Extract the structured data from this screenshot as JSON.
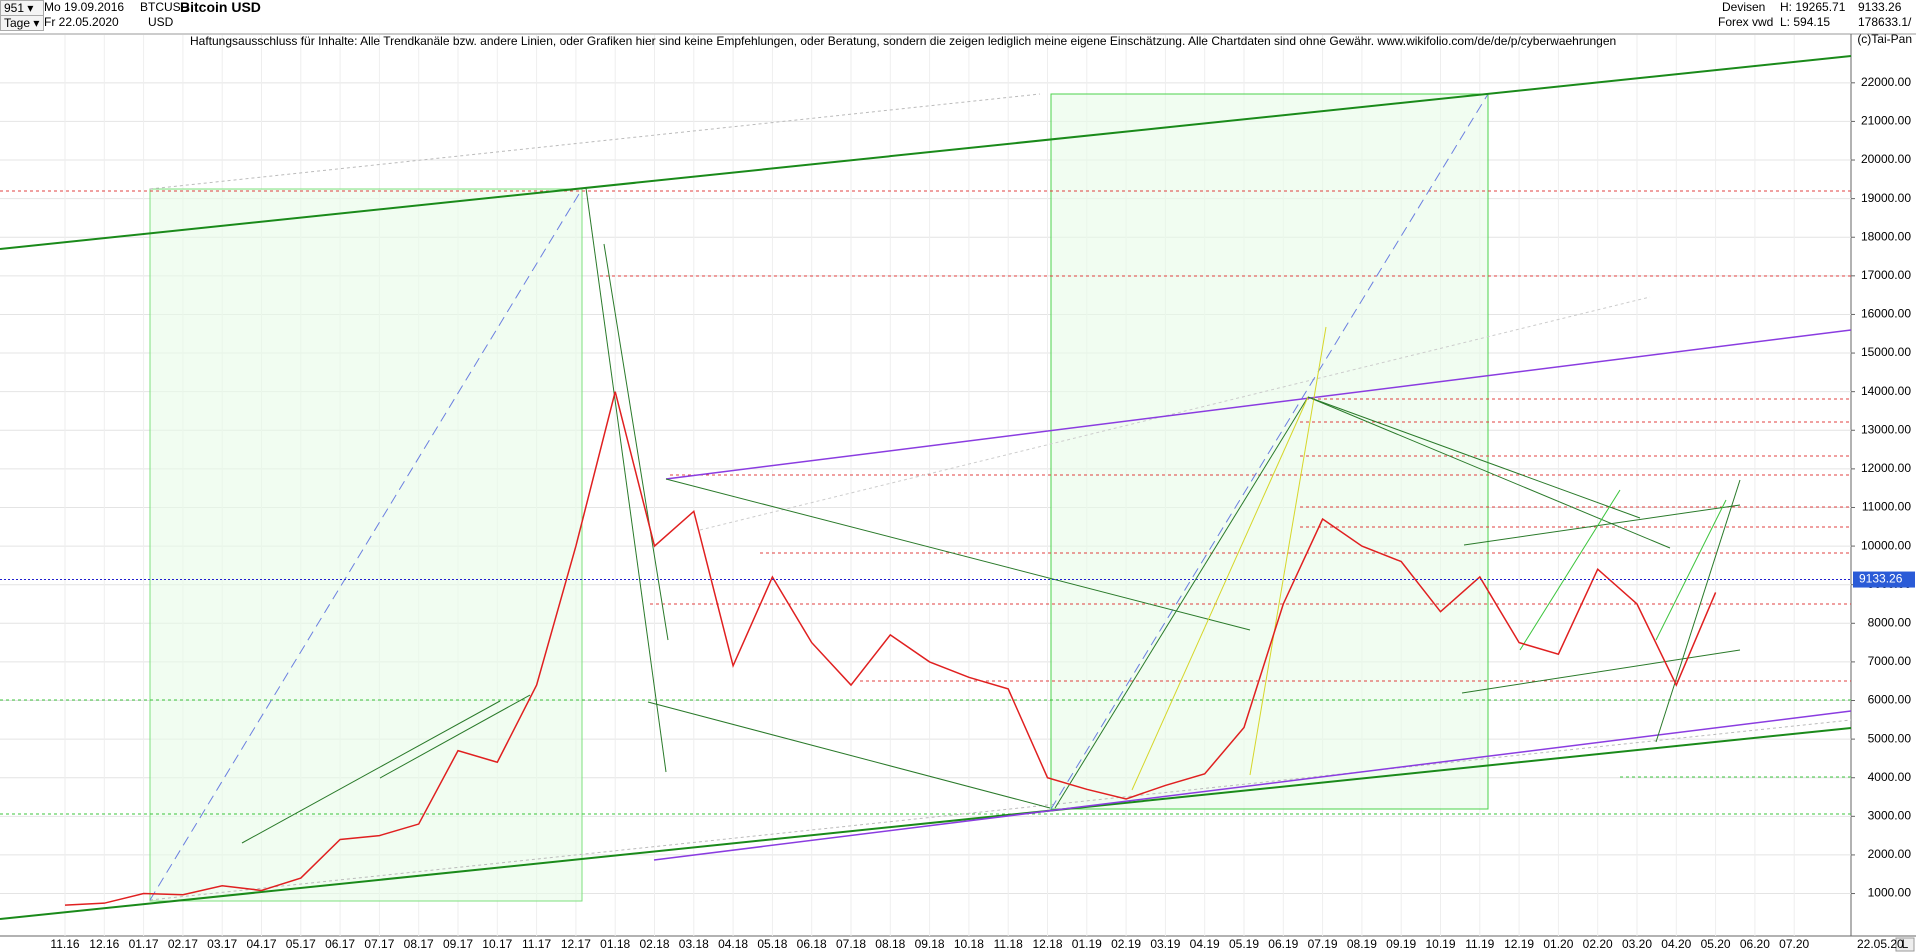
{
  "header": {
    "period": "951",
    "start_date": "Mo 19.09.2016",
    "symbol": "BTCUSD",
    "currency": "USD",
    "unit": "Tage",
    "end_date": "Fr 22.05.2020",
    "name": "Bitcoin USD",
    "market": "Devisen",
    "source": "Forex vwd",
    "high": "H: 19265.71",
    "low": "L: 594.15",
    "last": "9133.26",
    "volume": "178633.1/",
    "axis_mode": "L"
  },
  "disclaimer": "Haftungsausschluss für Inhalte: Alle Trendkanäle bzw. andere Linien, oder Grafiken hier sind keine Empfehlungen, oder Beratung, sondern die zeigen lediglich meine eigene Einschätzung. Alle Chartdaten sind ohne Gewähr.  www.wikifolio.com/de/de/p/cyberwaehrungen",
  "copyright": "(c)Tai-Pan",
  "chart_data": {
    "type": "line",
    "categories": [
      "11.16",
      "12.16",
      "01.17",
      "02.17",
      "03.17",
      "04.17",
      "05.17",
      "06.17",
      "07.17",
      "08.17",
      "09.17",
      "10.17",
      "11.17",
      "12.17",
      "01.18",
      "02.18",
      "03.18",
      "04.18",
      "05.18",
      "06.18",
      "07.18",
      "08.18",
      "09.18",
      "10.18",
      "11.18",
      "12.18",
      "01.19",
      "02.19",
      "03.19",
      "04.19",
      "05.19",
      "06.19",
      "07.19",
      "08.19",
      "09.19",
      "10.19",
      "11.19",
      "12.19",
      "01.20",
      "02.20",
      "03.20",
      "04.20",
      "05.20",
      "06.20",
      "07.20"
    ],
    "series": [
      {
        "name": "Bitcoin USD",
        "color": "#e02020",
        "values": [
          700,
          750,
          1000,
          970,
          1200,
          1080,
          1400,
          2400,
          2500,
          2800,
          4700,
          4400,
          6400,
          10000,
          14000,
          10000,
          10900,
          6900,
          9200,
          7500,
          6400,
          7700,
          7000,
          6600,
          6300,
          4000,
          3700,
          3450,
          3800,
          4100,
          5300,
          8500,
          10700,
          10000,
          9600,
          8300,
          9200,
          7500,
          7200,
          9400,
          8500,
          6400,
          8800,
          null,
          null
        ]
      }
    ],
    "last_price": 9133.26,
    "last_date": "22.05.20",
    "ylim": [
      -100,
      22850
    ],
    "yticks": [
      {
        "value": 1000,
        "label": "1000.00"
      },
      {
        "value": 2000,
        "label": "2000.00"
      },
      {
        "value": 3000,
        "label": "3000.00"
      },
      {
        "value": 4000,
        "label": "4000.00"
      },
      {
        "value": 5000,
        "label": "5000.00"
      },
      {
        "value": 6000,
        "label": "6000.00"
      },
      {
        "value": 7000,
        "label": "7000.00"
      },
      {
        "value": 8000,
        "label": "8000.00"
      },
      {
        "value": 9000,
        "label": "9000.00"
      },
      {
        "value": 10000,
        "label": "10000.00"
      },
      {
        "value": 11000,
        "label": "11000.00"
      },
      {
        "value": 12000,
        "label": "12000.00"
      },
      {
        "value": 13000,
        "label": "13000.00"
      },
      {
        "value": 14000,
        "label": "14000.00"
      },
      {
        "value": 15000,
        "label": "15000.00"
      },
      {
        "value": 16000,
        "label": "16000.00"
      },
      {
        "value": 17000,
        "label": "17000.00"
      },
      {
        "value": 18000,
        "label": "18000.00"
      },
      {
        "value": 19000,
        "label": "19000.00"
      },
      {
        "value": 20000,
        "label": "20000.00"
      },
      {
        "value": 21000,
        "label": "21000.00"
      },
      {
        "value": 22000,
        "label": "22000.00"
      }
    ],
    "grid": true
  }
}
